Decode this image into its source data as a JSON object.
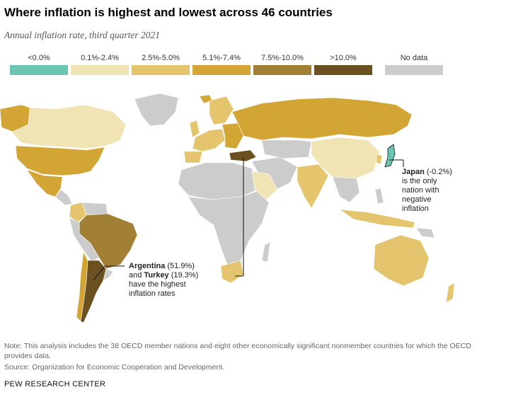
{
  "header": {
    "title": "Where inflation is highest and lowest across 46 countries",
    "subtitle": "Annual inflation rate, third quarter 2021"
  },
  "legend": [
    {
      "label": "<0.0%",
      "color": "#6cc5b3"
    },
    {
      "label": "0.1%-2.4%",
      "color": "#f0e3b4"
    },
    {
      "label": "2.5%-5.0%",
      "color": "#e4c46c"
    },
    {
      "label": "5.1%-7.4%",
      "color": "#d2a535"
    },
    {
      "label": "7.5%-10.0%",
      "color": "#a17f35"
    },
    {
      "label": ">10.0%",
      "color": "#6b5020"
    },
    {
      "label": "No data",
      "color": "#cccccc"
    }
  ],
  "annotations": {
    "japan": {
      "name": "Japan",
      "value": "(-0.2%)",
      "text_line1": "is the only",
      "text_line2": "nation with",
      "text_line3": "negative",
      "text_line4": "inflation"
    },
    "arg_turkey": {
      "name1": "Argentina",
      "value1": "(51.9%)",
      "and": "and",
      "name2": "Turkey",
      "value2": "(19.3%)",
      "text_line1": "have the highest",
      "text_line2": "inflation rates"
    }
  },
  "footer": {
    "note": "Note: This analysis includes the 38 OECD member nations and eight other economically significant nonmember countries for which the OECD provides data.",
    "source": "Source: Organization for Economic Cooperation and Development.",
    "brand": "PEW RESEARCH CENTER"
  }
}
